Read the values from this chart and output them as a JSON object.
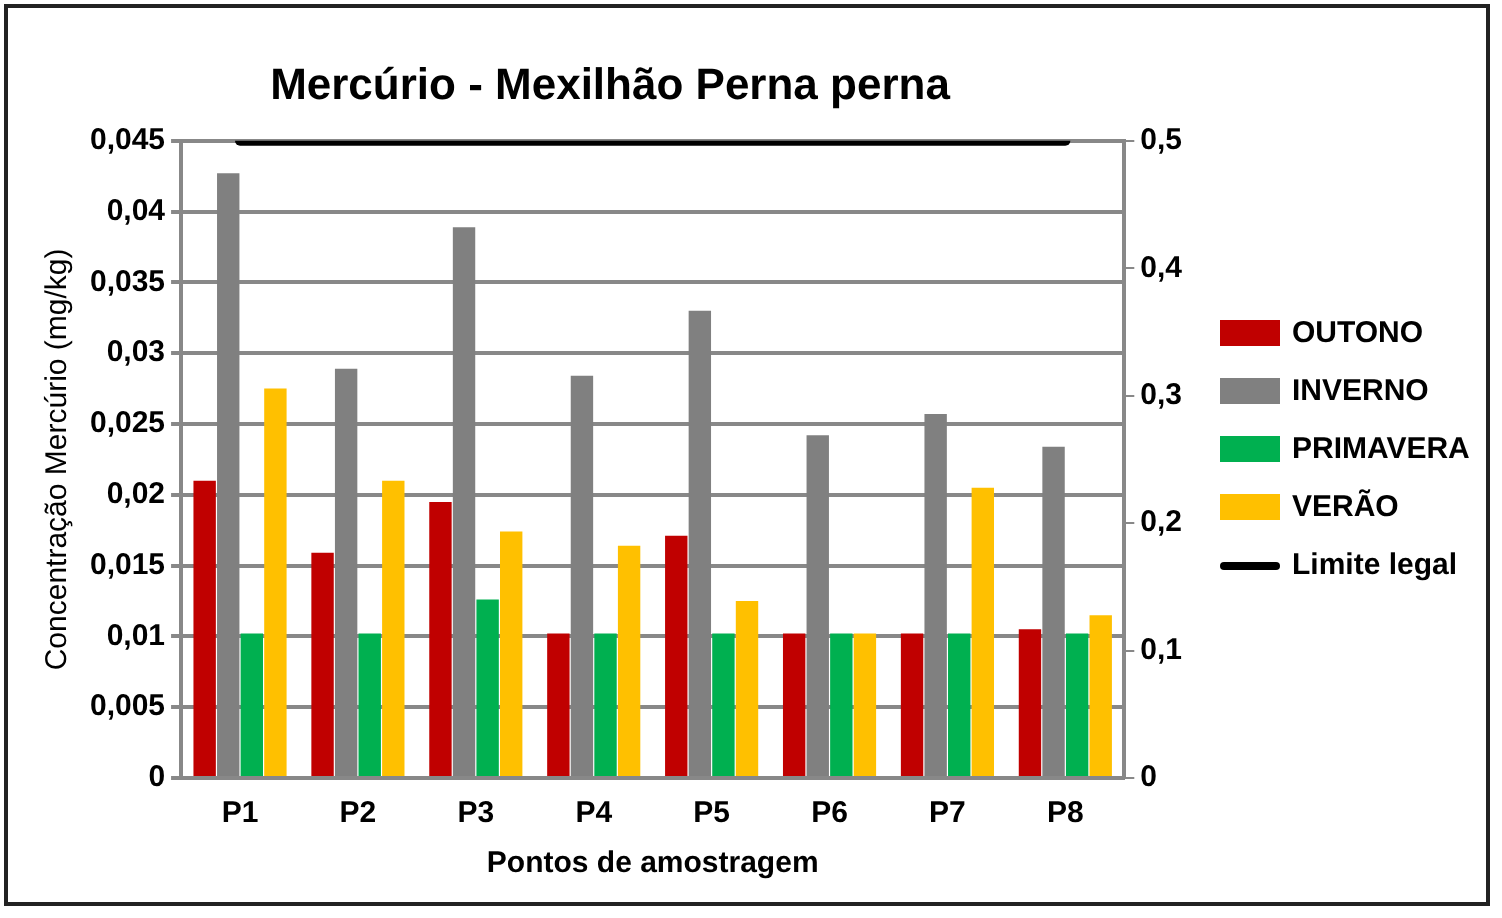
{
  "chart_data": {
    "type": "bar",
    "title": "Mercúrio - Mexilhão Perna perna",
    "xlabel": "Pontos de amostragem",
    "ylabel": "Concentração Mercúrio (mg/kg)",
    "categories": [
      "P1",
      "P2",
      "P3",
      "P4",
      "P5",
      "P6",
      "P7",
      "P8"
    ],
    "series": [
      {
        "name": "OUTONO",
        "color": "#c00000",
        "values": [
          0.021,
          0.0159,
          0.0195,
          0.0102,
          0.0171,
          0.0102,
          0.0102,
          0.0105
        ]
      },
      {
        "name": "INVERNO",
        "color": "#808080",
        "values": [
          0.0427,
          0.0289,
          0.0389,
          0.0284,
          0.033,
          0.0242,
          0.0257,
          0.0234
        ]
      },
      {
        "name": "PRIMAVERA",
        "color": "#00b050",
        "values": [
          0.0102,
          0.0102,
          0.0126,
          0.0102,
          0.0102,
          0.0102,
          0.0102,
          0.0102
        ]
      },
      {
        "name": "VERÃO",
        "color": "#ffc000",
        "values": [
          0.0275,
          0.021,
          0.0174,
          0.0164,
          0.0125,
          0.0102,
          0.0205,
          0.0115
        ]
      },
      {
        "name": "Limite legal",
        "color": "#000000",
        "type": "line",
        "axis": "y2",
        "values": [
          0.5,
          0.5,
          0.5,
          0.5,
          0.5,
          0.5,
          0.5,
          0.5
        ]
      }
    ],
    "ylim": [
      0,
      0.045
    ],
    "yticks": [
      {
        "value": 0,
        "label": "0"
      },
      {
        "value": 0.005,
        "label": "0,005"
      },
      {
        "value": 0.01,
        "label": "0,01"
      },
      {
        "value": 0.015,
        "label": "0,015"
      },
      {
        "value": 0.02,
        "label": "0,02"
      },
      {
        "value": 0.025,
        "label": "0,025"
      },
      {
        "value": 0.03,
        "label": "0,03"
      },
      {
        "value": 0.035,
        "label": "0,035"
      },
      {
        "value": 0.04,
        "label": "0,04"
      },
      {
        "value": 0.045,
        "label": "0,045"
      }
    ],
    "y2lim": [
      0,
      0.5
    ],
    "y2ticks": [
      {
        "value": 0,
        "label": "0"
      },
      {
        "value": 0.1,
        "label": "0,1"
      },
      {
        "value": 0.2,
        "label": "0,2"
      },
      {
        "value": 0.3,
        "label": "0,3"
      },
      {
        "value": 0.4,
        "label": "0,4"
      },
      {
        "value": 0.5,
        "label": "0,5"
      }
    ],
    "grid": "y",
    "legend": "right",
    "marker": "none",
    "line_style": "solid"
  }
}
